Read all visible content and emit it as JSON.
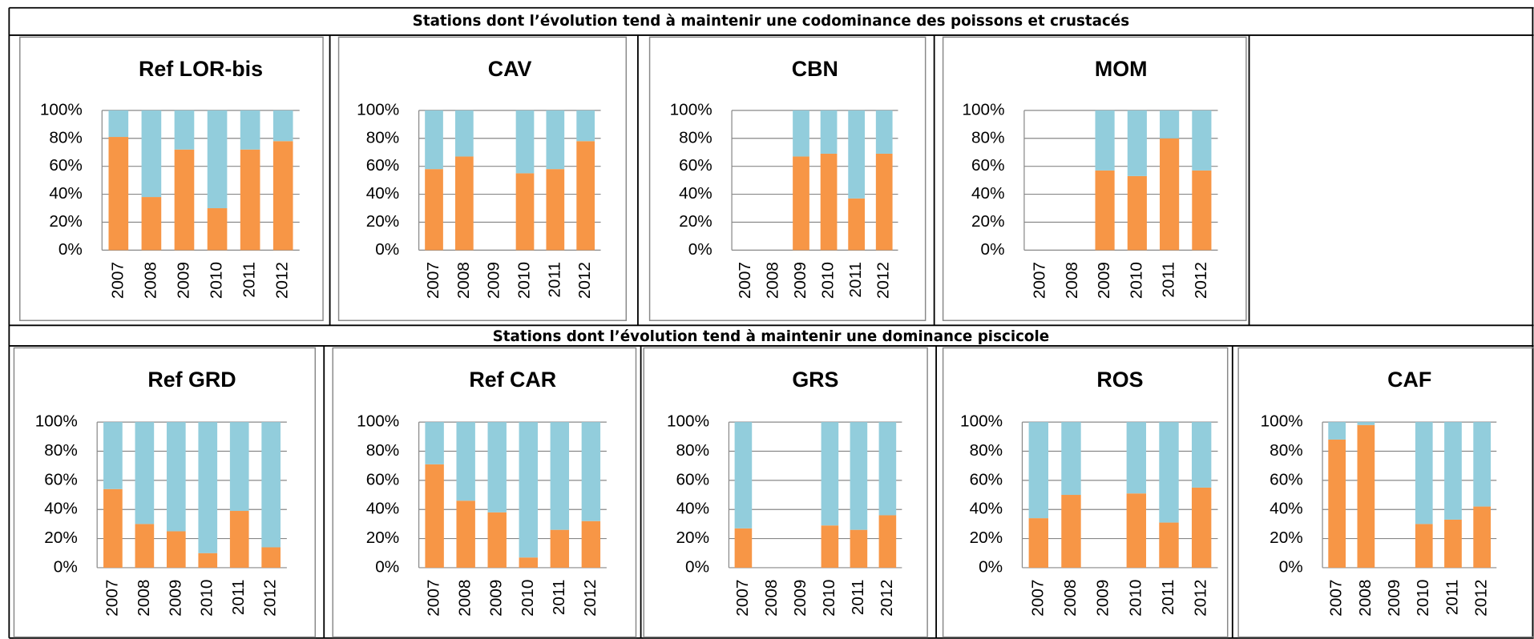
{
  "sections": [
    {
      "title": "Stations dont l’évolution tend à maintenir une codominance des poissons et crustacés",
      "chart_data": [
        {
          "type": "stacked-bar",
          "title": "Ref LOR-bis",
          "categories": [
            "2007",
            "2008",
            "2009",
            "2010",
            "2011",
            "2012"
          ],
          "series": [
            {
              "color": "#f79646",
              "values": [
                81,
                38,
                72,
                30,
                72,
                78
              ]
            },
            {
              "color": "#92cddc",
              "values": [
                19,
                62,
                28,
                70,
                28,
                22
              ]
            }
          ],
          "ylim": [
            0,
            100
          ],
          "yticks": [
            {
              "value": 0,
              "label": "0%"
            },
            {
              "value": 20,
              "label": "20%"
            },
            {
              "value": 40,
              "label": "40%"
            },
            {
              "value": 60,
              "label": "60%"
            },
            {
              "value": 80,
              "label": "80%"
            },
            {
              "value": 100,
              "label": "100%"
            }
          ],
          "grid": true
        },
        {
          "type": "stacked-bar",
          "title": "CAV",
          "categories": [
            "2007",
            "2008",
            "2009",
            "2010",
            "2011",
            "2012"
          ],
          "series": [
            {
              "color": "#f79646",
              "values": [
                58,
                67,
                null,
                55,
                58,
                78
              ]
            },
            {
              "color": "#92cddc",
              "values": [
                42,
                33,
                null,
                45,
                42,
                22
              ]
            }
          ],
          "ylim": [
            0,
            100
          ],
          "yticks": [
            {
              "value": 0,
              "label": "0%"
            },
            {
              "value": 20,
              "label": "20%"
            },
            {
              "value": 40,
              "label": "40%"
            },
            {
              "value": 60,
              "label": "60%"
            },
            {
              "value": 80,
              "label": "80%"
            },
            {
              "value": 100,
              "label": "100%"
            }
          ],
          "grid": true
        },
        {
          "type": "stacked-bar",
          "title": "CBN",
          "categories": [
            "2007",
            "2008",
            "2009",
            "2010",
            "2011",
            "2012"
          ],
          "series": [
            {
              "color": "#f79646",
              "values": [
                null,
                null,
                67,
                69,
                37,
                69
              ]
            },
            {
              "color": "#92cddc",
              "values": [
                null,
                null,
                33,
                31,
                63,
                31
              ]
            }
          ],
          "ylim": [
            0,
            100
          ],
          "yticks": [
            {
              "value": 0,
              "label": "0%"
            },
            {
              "value": 20,
              "label": "20%"
            },
            {
              "value": 40,
              "label": "40%"
            },
            {
              "value": 60,
              "label": "60%"
            },
            {
              "value": 80,
              "label": "80%"
            },
            {
              "value": 100,
              "label": "100%"
            }
          ],
          "grid": true
        },
        {
          "type": "stacked-bar",
          "title": "MOM",
          "categories": [
            "2007",
            "2008",
            "2009",
            "2010",
            "2011",
            "2012"
          ],
          "series": [
            {
              "color": "#f79646",
              "values": [
                null,
                null,
                57,
                53,
                80,
                57
              ]
            },
            {
              "color": "#92cddc",
              "values": [
                null,
                null,
                43,
                47,
                20,
                43
              ]
            }
          ],
          "ylim": [
            0,
            100
          ],
          "yticks": [
            {
              "value": 0,
              "label": "0%"
            },
            {
              "value": 20,
              "label": "20%"
            },
            {
              "value": 40,
              "label": "40%"
            },
            {
              "value": 60,
              "label": "60%"
            },
            {
              "value": 80,
              "label": "80%"
            },
            {
              "value": 100,
              "label": "100%"
            }
          ],
          "grid": true
        }
      ]
    },
    {
      "title": "Stations dont l’évolution tend à maintenir une dominance piscicole",
      "chart_data": [
        {
          "type": "stacked-bar",
          "title": "Ref GRD",
          "categories": [
            "2007",
            "2008",
            "2009",
            "2010",
            "2011",
            "2012"
          ],
          "series": [
            {
              "color": "#f79646",
              "values": [
                54,
                30,
                25,
                10,
                39,
                14
              ]
            },
            {
              "color": "#92cddc",
              "values": [
                46,
                70,
                75,
                90,
                61,
                86
              ]
            }
          ],
          "ylim": [
            0,
            100
          ],
          "yticks": [
            {
              "value": 0,
              "label": "0%"
            },
            {
              "value": 20,
              "label": "20%"
            },
            {
              "value": 40,
              "label": "40%"
            },
            {
              "value": 60,
              "label": "60%"
            },
            {
              "value": 80,
              "label": "80%"
            },
            {
              "value": 100,
              "label": "100%"
            }
          ],
          "grid": true
        },
        {
          "type": "stacked-bar",
          "title": "Ref CAR",
          "categories": [
            "2007",
            "2008",
            "2009",
            "2010",
            "2011",
            "2012"
          ],
          "series": [
            {
              "color": "#f79646",
              "values": [
                71,
                46,
                38,
                7,
                26,
                32
              ]
            },
            {
              "color": "#92cddc",
              "values": [
                29,
                54,
                62,
                93,
                74,
                68
              ]
            }
          ],
          "ylim": [
            0,
            100
          ],
          "yticks": [
            {
              "value": 0,
              "label": "0%"
            },
            {
              "value": 20,
              "label": "20%"
            },
            {
              "value": 40,
              "label": "40%"
            },
            {
              "value": 60,
              "label": "60%"
            },
            {
              "value": 80,
              "label": "80%"
            },
            {
              "value": 100,
              "label": "100%"
            }
          ],
          "grid": true
        },
        {
          "type": "stacked-bar",
          "title": "GRS",
          "categories": [
            "2007",
            "2008",
            "2009",
            "2010",
            "2011",
            "2012"
          ],
          "series": [
            {
              "color": "#f79646",
              "values": [
                27,
                null,
                null,
                29,
                26,
                36
              ]
            },
            {
              "color": "#92cddc",
              "values": [
                73,
                null,
                null,
                71,
                74,
                64
              ]
            }
          ],
          "ylim": [
            0,
            100
          ],
          "yticks": [
            {
              "value": 0,
              "label": "0%"
            },
            {
              "value": 20,
              "label": "20%"
            },
            {
              "value": 40,
              "label": "40%"
            },
            {
              "value": 60,
              "label": "60%"
            },
            {
              "value": 80,
              "label": "80%"
            },
            {
              "value": 100,
              "label": "100%"
            }
          ],
          "grid": true
        },
        {
          "type": "stacked-bar",
          "title": "ROS",
          "categories": [
            "2007",
            "2008",
            "2009",
            "2010",
            "2011",
            "2012"
          ],
          "series": [
            {
              "color": "#f79646",
              "values": [
                34,
                50,
                null,
                51,
                31,
                55
              ]
            },
            {
              "color": "#92cddc",
              "values": [
                66,
                50,
                null,
                49,
                69,
                45
              ]
            }
          ],
          "ylim": [
            0,
            100
          ],
          "yticks": [
            {
              "value": 0,
              "label": "0%"
            },
            {
              "value": 20,
              "label": "20%"
            },
            {
              "value": 40,
              "label": "40%"
            },
            {
              "value": 60,
              "label": "60%"
            },
            {
              "value": 80,
              "label": "80%"
            },
            {
              "value": 100,
              "label": "100%"
            }
          ],
          "grid": true
        },
        {
          "type": "stacked-bar",
          "title": "CAF",
          "categories": [
            "2007",
            "2008",
            "2009",
            "2010",
            "2011",
            "2012"
          ],
          "series": [
            {
              "color": "#f79646",
              "values": [
                88,
                98,
                null,
                30,
                33,
                42
              ]
            },
            {
              "color": "#92cddc",
              "values": [
                12,
                2,
                null,
                70,
                67,
                58
              ]
            }
          ],
          "ylim": [
            0,
            100
          ],
          "yticks": [
            {
              "value": 0,
              "label": "0%"
            },
            {
              "value": 20,
              "label": "20%"
            },
            {
              "value": 40,
              "label": "40%"
            },
            {
              "value": 60,
              "label": "60%"
            },
            {
              "value": 80,
              "label": "80%"
            },
            {
              "value": 100,
              "label": "100%"
            }
          ],
          "grid": true
        }
      ]
    }
  ]
}
